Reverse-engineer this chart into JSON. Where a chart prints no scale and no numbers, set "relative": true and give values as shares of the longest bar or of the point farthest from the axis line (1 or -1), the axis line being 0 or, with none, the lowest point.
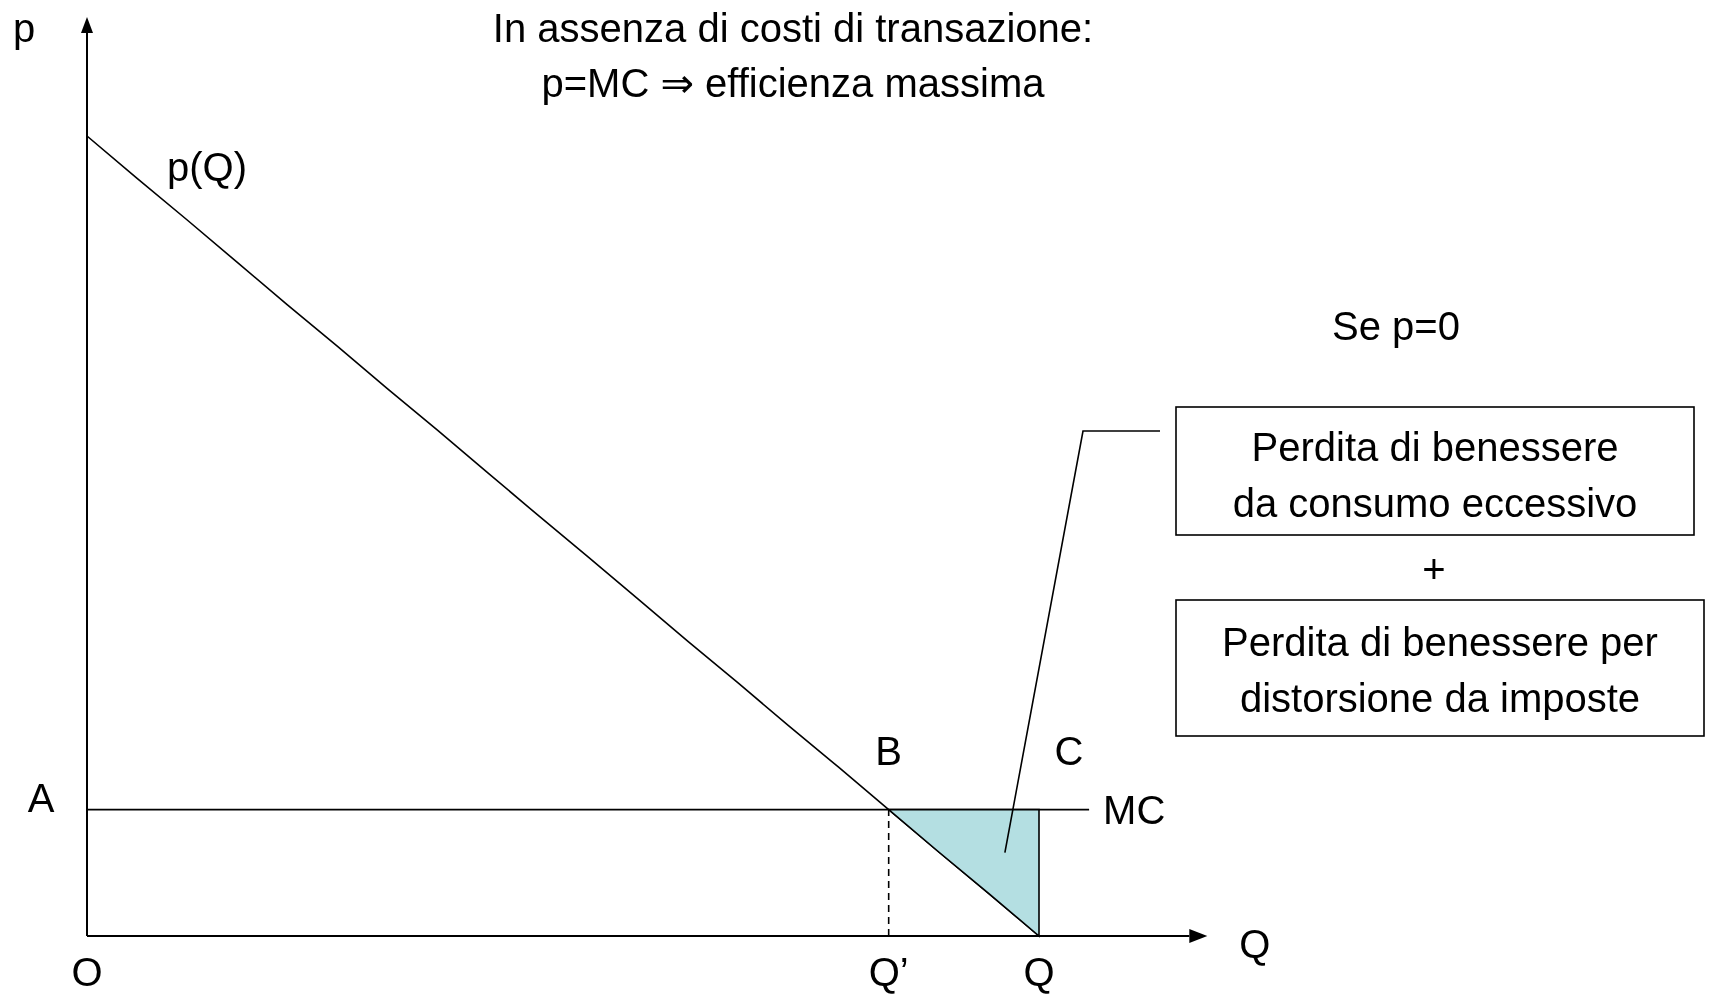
{
  "chart_data": {
    "type": "line",
    "relative": true,
    "title": "In assenza di costi di transazione:",
    "subtitle": "p=MC ⇒ efficienza massima",
    "xlabel": "Q",
    "ylabel": "p",
    "marker": "none",
    "categories": [
      "O",
      null,
      null,
      null,
      null,
      null,
      null,
      null,
      null,
      null,
      null,
      null,
      null,
      null,
      null,
      null,
      "Q’",
      null,
      null,
      "Q",
      null,
      null,
      null
    ],
    "series": [
      {
        "name": "p(Q)",
        "color": "#000000",
        "values": [
          1,
          0.947,
          0.895,
          0.842,
          0.789,
          0.737,
          0.684,
          0.632,
          0.579,
          0.526,
          0.474,
          0.421,
          0.368,
          0.316,
          0.263,
          0.211,
          0.158,
          0.105,
          0.053,
          0,
          null,
          null,
          null
        ]
      },
      {
        "name": "MC",
        "color": "#000000",
        "values": [
          0.158,
          0.158,
          0.158,
          0.158,
          0.158,
          0.158,
          0.158,
          0.158,
          0.158,
          0.158,
          0.158,
          0.158,
          0.158,
          0.158,
          0.158,
          0.158,
          0.158,
          0.158,
          0.158,
          0.158,
          0.158,
          null,
          null
        ]
      },
      {
        "type": "area",
        "color": "#b4dfe2",
        "values": [
          null,
          null,
          null,
          null,
          null,
          null,
          null,
          null,
          null,
          null,
          null,
          null,
          null,
          null,
          null,
          null,
          0.158,
          0.158,
          0.158,
          0.158,
          null,
          null,
          null
        ]
      }
    ],
    "ref_lines": [
      {
        "axis": "x",
        "value": "Q’",
        "line_style": "dashed",
        "color": "#000000"
      }
    ],
    "annotations": [
      {
        "text": "A",
        "x": "O",
        "y": 0.158
      },
      {
        "text": "B",
        "x": "Q’",
        "y": 0.158
      },
      {
        "text": "C",
        "x": "Q",
        "y": 0.158
      },
      "Se p=0",
      "Perdita di benessere da consumo eccessivo",
      "+",
      "Perdita di benessere per distorsione da imposte"
    ]
  }
}
